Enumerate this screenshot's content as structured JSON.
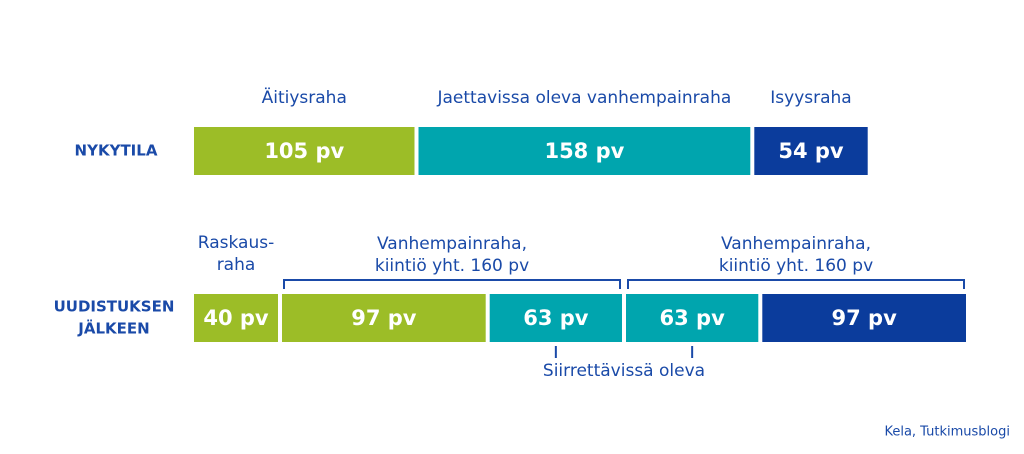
{
  "rows": [
    {
      "label": [
        "NYKYTILA"
      ],
      "segments": [
        {
          "header": [
            "Äitiysraha"
          ],
          "days": 105,
          "label": "105 pv",
          "color": "#9cbd27"
        },
        {
          "header": [
            "Jaettavissa oleva vanhempainraha"
          ],
          "days": 158,
          "label": "158 pv",
          "color": "#00a5ae"
        },
        {
          "header": [
            "Isyysraha"
          ],
          "days": 54,
          "label": "54 pv",
          "color": "#0b3c9c"
        }
      ]
    },
    {
      "label": [
        "UUDISTUKSEN",
        "JÄLKEEN"
      ],
      "segments": [
        {
          "header": [
            "Raskaus-",
            "raha"
          ],
          "days": 40,
          "label": "40 pv",
          "color": "#9cbd27"
        },
        {
          "days": 97,
          "label": "97 pv",
          "color": "#9cbd27"
        },
        {
          "days": 63,
          "label": "63 pv",
          "color": "#00a5ae"
        },
        {
          "days": 63,
          "label": "63 pv",
          "color": "#00a5ae"
        },
        {
          "days": 97,
          "label": "97 pv",
          "color": "#0b3c9c"
        }
      ],
      "groups": [
        {
          "lines": [
            "Vanhempainraha,",
            "kiintiö yht. 160 pv"
          ]
        },
        {
          "lines": [
            "Vanhempainraha,",
            "kiintiö yht. 160 pv"
          ]
        }
      ],
      "note": "Siirrettävissä oleva"
    }
  ],
  "source": "Kela, Tutkimusblogi"
}
